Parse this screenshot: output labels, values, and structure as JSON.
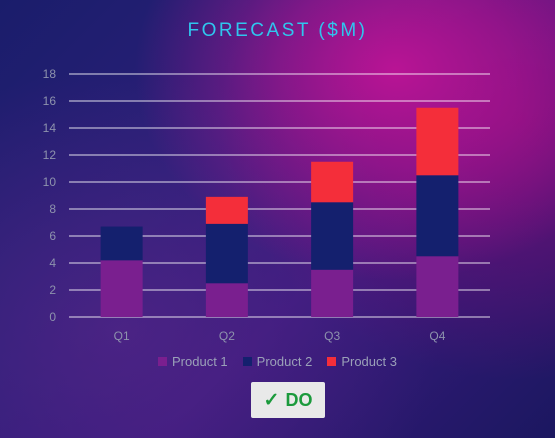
{
  "chart_data": {
    "type": "bar",
    "stacked": true,
    "title": "FORECAST ($M)",
    "categories": [
      "Q1",
      "Q2",
      "Q3",
      "Q4"
    ],
    "series": [
      {
        "name": "Product 1",
        "values": [
          4.2,
          2.5,
          3.5,
          4.5
        ],
        "color": "#7a1f8f"
      },
      {
        "name": "Product 2",
        "values": [
          2.5,
          4.4,
          5.0,
          6.0
        ],
        "color": "#14206e"
      },
      {
        "name": "Product 3",
        "values": [
          0,
          2.0,
          3.0,
          5.0
        ],
        "color": "#f42e3a"
      }
    ],
    "ylim": [
      0,
      18
    ],
    "yticks": [
      0,
      2,
      4,
      6,
      8,
      10,
      12,
      14,
      16,
      18
    ],
    "grid": true,
    "legend": "bottom"
  },
  "badge": {
    "icon": "check-icon",
    "label": "DO",
    "color": "#1b9a3c"
  }
}
